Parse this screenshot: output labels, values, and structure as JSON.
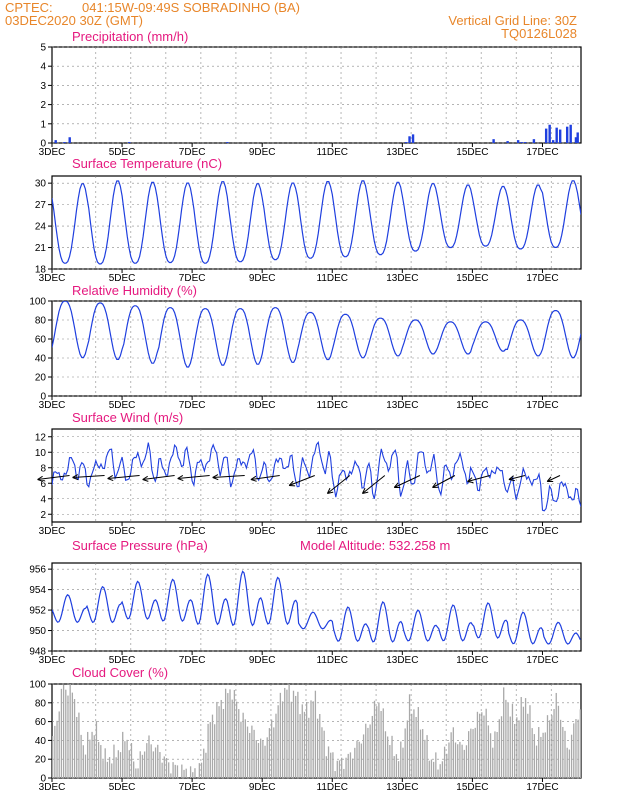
{
  "header": {
    "source": "CPTEC:",
    "location": "041:15W-09:49S   SOBRADINHO (BA)",
    "date": "03DEC2020 30Z (GMT)",
    "grid_note": "Vertical Grid Line: 30Z",
    "model_id": "TQ0126L028"
  },
  "colors": {
    "header": "#e8862a",
    "title": "#e5197f",
    "line": "#1f3fdf",
    "cloud": "#a9a9a9"
  },
  "chart_data": [
    {
      "type": "bar",
      "title": "Precipitation (mm/h)",
      "ylim": [
        0,
        5
      ],
      "yticks": [
        "0",
        "1",
        "2",
        "3",
        "4",
        "5"
      ],
      "xticks": [
        "3DEC",
        "5DEC",
        "7DEC",
        "9DEC",
        "11DEC",
        "13DEC",
        "15DEC",
        "17DEC"
      ],
      "x_days": [
        3.1,
        3.35,
        3.5,
        5.2,
        8.0,
        13.1,
        13.2,
        13.3,
        15.6,
        16.0,
        16.3,
        16.4,
        16.5,
        16.75,
        17.1,
        17.2,
        17.3,
        17.4,
        17.5,
        17.7,
        17.8,
        17.95,
        18.0
      ],
      "values": [
        0.15,
        0.05,
        0.3,
        0.05,
        0.05,
        0.05,
        0.35,
        0.45,
        0.2,
        0.1,
        0.15,
        0.05,
        0.05,
        0.2,
        0.75,
        0.95,
        0.15,
        0.8,
        0.7,
        0.85,
        0.95,
        0.3,
        0.55
      ]
    },
    {
      "type": "line",
      "title": "Surface Temperature (nC)",
      "ylim": [
        18,
        31
      ],
      "yticks": [
        "18",
        "21",
        "24",
        "27",
        "30"
      ],
      "xticks": [
        "3DEC",
        "5DEC",
        "7DEC",
        "9DEC",
        "11DEC",
        "13DEC",
        "15DEC",
        "17DEC"
      ],
      "daily_min": [
        18.8,
        18.7,
        18.8,
        18.9,
        18.8,
        19.0,
        19.3,
        19.5,
        19.7,
        20.0,
        20.5,
        21.0,
        21.2,
        20.8,
        21.0
      ],
      "daily_max": [
        30.0,
        30.4,
        30.2,
        30.1,
        30.3,
        30.0,
        30.1,
        30.3,
        30.4,
        30.2,
        30.0,
        29.8,
        29.6,
        29.8,
        30.4
      ]
    },
    {
      "type": "line",
      "title": "Relative Humidity (%)",
      "ylim": [
        0,
        100
      ],
      "yticks": [
        "0",
        "20",
        "40",
        "60",
        "80",
        "100"
      ],
      "xticks": [
        "3DEC",
        "5DEC",
        "7DEC",
        "9DEC",
        "11DEC",
        "13DEC",
        "15DEC",
        "17DEC"
      ],
      "daily_min": [
        40,
        38,
        34,
        30,
        32,
        33,
        35,
        38,
        40,
        42,
        44,
        44,
        47,
        42,
        40
      ],
      "daily_max": [
        100,
        98,
        95,
        93,
        92,
        92,
        93,
        88,
        86,
        82,
        80,
        78,
        78,
        80,
        90
      ]
    },
    {
      "type": "line",
      "title": "Surface Wind (m/s)",
      "ylim": [
        1,
        13
      ],
      "yticks": [
        "2",
        "4",
        "6",
        "8",
        "10",
        "12"
      ],
      "xticks": [
        "3DEC",
        "5DEC",
        "7DEC",
        "9DEC",
        "11DEC",
        "13DEC",
        "15DEC",
        "17DEC"
      ],
      "speed_min": [
        5.5,
        6.0,
        6.0,
        6.2,
        6.3,
        6.0,
        5.8,
        5.5,
        5.0,
        4.0,
        4.5,
        5.0,
        5.5,
        4.0,
        2.5
      ],
      "speed_max": [
        9.5,
        10.5,
        11.0,
        11.2,
        11.0,
        10.5,
        10.0,
        11.5,
        9.0,
        11.5,
        11.0,
        10.0,
        8.5,
        8.0,
        6.5
      ],
      "vector_days": [
        3.5,
        4.5,
        5.5,
        6.5,
        7.5,
        8.5,
        9.5,
        10.5,
        11.5,
        12.5,
        13.5,
        14.5,
        15.5,
        16.5,
        17.5
      ],
      "vector_dx": [
        1.0,
        1.0,
        1.0,
        1.0,
        1.0,
        1.0,
        0.9,
        0.8,
        0.7,
        0.7,
        0.8,
        0.7,
        0.7,
        0.5,
        0.4
      ],
      "vector_dy": [
        0.2,
        0.1,
        0.15,
        0.2,
        0.15,
        0.1,
        0.2,
        0.5,
        0.9,
        0.9,
        0.6,
        0.6,
        0.3,
        0.2,
        0.3
      ]
    },
    {
      "type": "line",
      "title": "Surface Pressure (hPa)",
      "extra_title": "Model Altitude: 532.258  m",
      "ylim": [
        948,
        956.6
      ],
      "yticks": [
        "948",
        "950",
        "952",
        "954",
        "956"
      ],
      "xticks": [
        "3DEC",
        "5DEC",
        "7DEC",
        "9DEC",
        "11DEC",
        "13DEC",
        "15DEC",
        "17DEC"
      ],
      "daily_low": [
        950.2,
        950.0,
        950.3,
        950.0,
        949.5,
        949.3,
        949.6,
        949.8,
        948.2,
        948.0,
        948.3,
        948.2,
        948.5,
        948.0,
        948.2
      ],
      "daily_high": [
        953.5,
        954.3,
        954.8,
        955.0,
        955.5,
        955.8,
        955.2,
        951.8,
        952.3,
        952.8,
        952.0,
        952.5,
        952.7,
        951.8,
        950.8
      ]
    },
    {
      "type": "area",
      "title": "Cloud Cover (%)",
      "ylim": [
        0,
        100
      ],
      "yticks": [
        "0",
        "20",
        "40",
        "60",
        "80",
        "100"
      ],
      "xticks": [
        "3DEC",
        "5DEC",
        "7DEC",
        "9DEC",
        "11DEC",
        "13DEC",
        "15DEC",
        "17DEC"
      ],
      "x_days": [
        3.0,
        3.3,
        3.6,
        3.9,
        4.2,
        4.5,
        4.8,
        5.1,
        5.4,
        5.7,
        6.0,
        6.3,
        6.6,
        6.9,
        7.2,
        7.5,
        7.8,
        8.1,
        8.4,
        8.7,
        9.0,
        9.3,
        9.6,
        9.9,
        10.2,
        10.5,
        10.8,
        11.1,
        11.4,
        11.7,
        12.0,
        12.3,
        12.6,
        12.9,
        13.2,
        13.5,
        13.8,
        14.1,
        14.4,
        14.7,
        15.0,
        15.3,
        15.6,
        15.9,
        16.2,
        16.5,
        16.8,
        17.1,
        17.4,
        17.7,
        18.0
      ],
      "values": [
        40,
        98,
        90,
        30,
        55,
        20,
        25,
        45,
        10,
        40,
        30,
        15,
        10,
        5,
        8,
        60,
        80,
        95,
        65,
        50,
        35,
        60,
        95,
        90,
        70,
        85,
        35,
        15,
        20,
        35,
        55,
        85,
        40,
        20,
        80,
        60,
        20,
        15,
        50,
        30,
        55,
        75,
        35,
        90,
        60,
        85,
        40,
        55,
        85,
        30,
        70
      ]
    }
  ]
}
